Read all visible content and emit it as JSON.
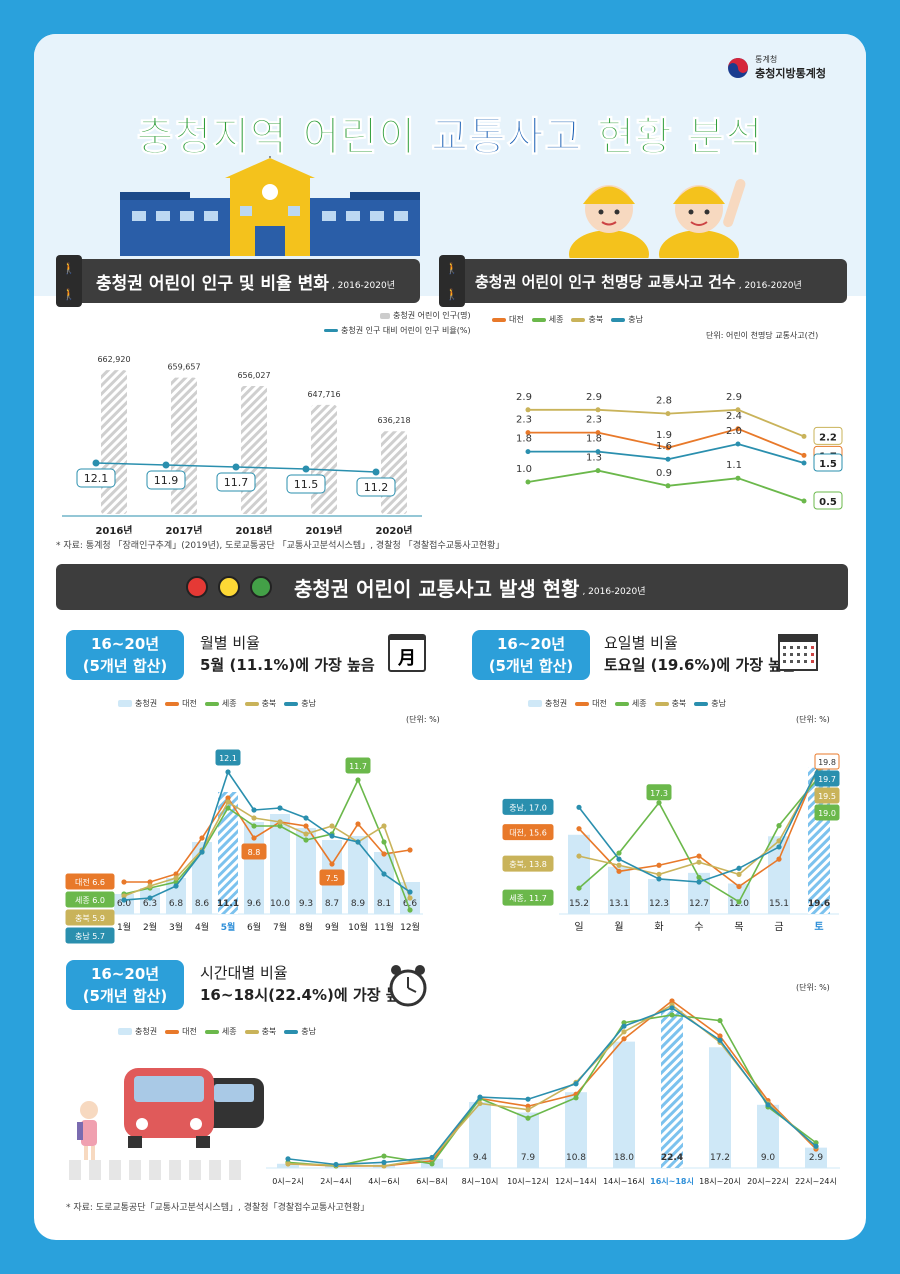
{
  "header": {
    "agency_small": "통계청",
    "agency_big": "충청지방통계청",
    "title_part1": "충청지역 어린이 ",
    "title_part2": "교통사고 ",
    "title_part3": "현황 분석"
  },
  "colors": {
    "daejeon": "#e8792a",
    "sejong": "#6bb84b",
    "chungbuk": "#c9b35a",
    "chungnam": "#2a8fae",
    "region_bar": "#cfe8f7",
    "highlight": "#2f8fd8"
  },
  "section1": {
    "title": "충청권 어린이 인구 및 비율 변화",
    "years_label": ", 2016-2020년",
    "legend_bar": "충청권 어린이 인구(명)",
    "legend_line": "충청권 인구 대비 어린이 인구 비율(%)"
  },
  "section2": {
    "title": "충청권 어린이 인구 천명당 교통사고 건수",
    "years_label": ", 2016-2020년",
    "unit": "단위: 어린이 천명당 교통사고(건)"
  },
  "source1": "* 자료: 통계청 「장래인구추계」(2019년), 도로교통공단 「교통사고분석시스템」, 경찰청 「경찰접수교통사고현황」",
  "section3": {
    "title": "충청권 어린이 교통사고 발생 현황",
    "years_label": ", 2016-2020년"
  },
  "badge_line1": "16~20년",
  "badge_line2": "(5개년 합산)",
  "monthly": {
    "subtitle1": "월별 비율",
    "subtitle2": "5월 (11.1%)에 가장 높음",
    "unit": "(단위: %)",
    "calendar_label": "月"
  },
  "weekday": {
    "subtitle1": "요일별 비율",
    "subtitle2": "토요일 (19.6%)에 가장 높음",
    "unit": "(단위: %)"
  },
  "hourly": {
    "subtitle1": "시간대별 비율",
    "subtitle2": "16~18시(22.4%)에 가장 높음",
    "unit": "(단위: %)"
  },
  "legend_names": {
    "region": "충청권",
    "daejeon": "대전",
    "sejong": "세종",
    "chungbuk": "충북",
    "chungnam": "충남"
  },
  "source2": "* 자료: 도로교통공단「교통사고분석시스템」, 경찰청「경찰접수교통사고현황」",
  "chart_data": [
    {
      "type": "bar",
      "categories": [
        "2016년",
        "2017년",
        "2018년",
        "2019년",
        "2020년"
      ],
      "bar_values": [
        662920,
        659657,
        656027,
        647716,
        636218
      ],
      "bar_labels": [
        "662,920",
        "659,657",
        "656,027",
        "647,716",
        "636,218"
      ],
      "line_values": [
        12.1,
        11.9,
        11.7,
        11.5,
        11.2
      ]
    },
    {
      "type": "line",
      "categories": [
        "2016년",
        "2017년",
        "2018년",
        "2019년",
        "2020년"
      ],
      "series": [
        {
          "name": "대전",
          "values": [
            2.3,
            2.3,
            1.9,
            2.4,
            1.7
          ]
        },
        {
          "name": "세종",
          "values": [
            1.0,
            1.3,
            0.9,
            1.1,
            0.5
          ]
        },
        {
          "name": "충북",
          "values": [
            2.9,
            2.9,
            2.8,
            2.9,
            2.2
          ]
        },
        {
          "name": "충남",
          "values": [
            1.8,
            1.8,
            1.6,
            2.0,
            1.5
          ]
        }
      ]
    },
    {
      "type": "bar",
      "categories": [
        "1월",
        "2월",
        "3월",
        "4월",
        "5월",
        "6월",
        "7월",
        "8월",
        "9월",
        "10월",
        "11월",
        "12월"
      ],
      "region_values": [
        6.0,
        6.3,
        6.8,
        8.6,
        11.1,
        9.6,
        10.0,
        9.3,
        8.7,
        8.9,
        8.1,
        6.6
      ],
      "series": [
        {
          "name": "대전",
          "values": [
            6.6,
            6.6,
            7.0,
            8.8,
            10.8,
            8.8,
            9.6,
            9.4,
            7.5,
            9.5,
            8.0,
            8.2
          ]
        },
        {
          "name": "세종",
          "values": [
            6.0,
            6.3,
            6.6,
            8.1,
            10.3,
            9.4,
            9.4,
            8.7,
            9.0,
            11.7,
            8.6,
            5.2
          ]
        },
        {
          "name": "충북",
          "values": [
            5.9,
            6.4,
            6.8,
            8.2,
            10.6,
            9.8,
            9.6,
            9.0,
            9.4,
            8.6,
            9.4,
            5.8
          ]
        },
        {
          "name": "충남",
          "values": [
            5.7,
            5.8,
            6.4,
            8.1,
            12.1,
            10.2,
            10.3,
            9.8,
            8.9,
            8.6,
            7.0,
            6.1
          ]
        }
      ],
      "labelled": {
        "대전_first": "대전 6.6",
        "세종_first": "세종 6.0",
        "충북_first": "충북 5.9",
        "충남_first": "충남 5.7",
        "max_chungnam": "12.1",
        "min_daejeon": "8.8",
        "sep_daejeon": "7.5",
        "oct_sejong": "11.7"
      }
    },
    {
      "type": "bar",
      "categories": [
        "일",
        "월",
        "화",
        "수",
        "목",
        "금",
        "토"
      ],
      "region_values": [
        15.2,
        13.1,
        12.3,
        12.7,
        12.0,
        15.1,
        19.6
      ],
      "series": [
        {
          "name": "대전",
          "values": [
            15.6,
            12.8,
            13.2,
            13.8,
            11.8,
            13.6,
            19.8
          ]
        },
        {
          "name": "세종",
          "values": [
            11.7,
            14.0,
            17.3,
            12.4,
            10.8,
            15.8,
            19.0
          ]
        },
        {
          "name": "충북",
          "values": [
            13.8,
            13.2,
            12.6,
            13.4,
            12.6,
            14.8,
            19.5
          ]
        },
        {
          "name": "충남",
          "values": [
            17.0,
            13.6,
            12.3,
            12.1,
            13.0,
            14.4,
            19.7
          ]
        }
      ],
      "labelled": {
        "chungnam_first": "충남, 17.0",
        "daejeon_first": "대전, 15.6",
        "chungbuk_first": "충북, 13.8",
        "sejong_first": "세종, 11.7",
        "tue_sejong": "17.3",
        "sat_daejeon": "19.8",
        "sat_chungnam": "19.7",
        "sat_chungbuk": "19.5",
        "sat_sejong": "19.0"
      }
    },
    {
      "type": "bar",
      "categories": [
        "0시~2시",
        "2시~4시",
        "4시~6시",
        "6시~8시",
        "8시~10시",
        "10시~12시",
        "12시~14시",
        "14시~16시",
        "16시~18시",
        "18시~20시",
        "20시~22시",
        "22시~24시"
      ],
      "region_values": [
        0.6,
        0.3,
        0.5,
        1.3,
        9.4,
        7.9,
        10.8,
        18.0,
        22.4,
        17.2,
        9.0,
        2.9
      ],
      "region_labels": [
        "",
        "",
        "",
        "",
        "9.4",
        "7.9",
        "10.8",
        "18.0",
        "22.4",
        "17.2",
        "9.0",
        "2.9"
      ],
      "series": [
        {
          "name": "대전",
          "values": [
            0.6,
            0.3,
            0.3,
            1.0,
            9.9,
            8.8,
            10.5,
            18.4,
            23.8,
            18.8,
            9.6,
            2.7
          ]
        },
        {
          "name": "세종",
          "values": [
            0.8,
            0.3,
            1.7,
            0.6,
            9.9,
            7.1,
            10.0,
            20.7,
            21.8,
            21.0,
            8.7,
            3.6
          ]
        },
        {
          "name": "충북",
          "values": [
            0.6,
            0.4,
            0.3,
            1.4,
            9.2,
            8.3,
            12.2,
            19.4,
            23.2,
            17.9,
            9.2,
            3.0
          ]
        },
        {
          "name": "충남",
          "values": [
            1.3,
            0.5,
            0.8,
            1.5,
            10.1,
            9.8,
            12.0,
            20.2,
            22.8,
            18.2,
            9.0,
            3.1
          ]
        }
      ]
    }
  ]
}
